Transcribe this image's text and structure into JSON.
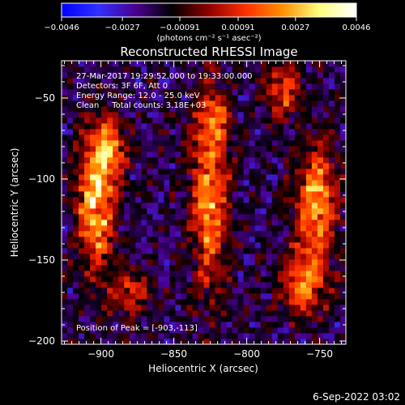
{
  "chart_data": {
    "type": "heatmap",
    "title": "Reconstructed RHESSI Image",
    "xlabel": "Heliocentric X (arcsec)",
    "ylabel": "Heliocentric Y (arcsec)",
    "xlim": [
      -927,
      -732
    ],
    "ylim": [
      -202,
      -27
    ],
    "x_ticks": [
      {
        "value": -900,
        "label": "−900"
      },
      {
        "value": -850,
        "label": "−850"
      },
      {
        "value": -800,
        "label": "−800"
      },
      {
        "value": -750,
        "label": "−750"
      }
    ],
    "y_ticks": [
      {
        "value": -50,
        "label": "−50"
      },
      {
        "value": -100,
        "label": "−100"
      },
      {
        "value": -150,
        "label": "−150"
      },
      {
        "value": -200,
        "label": "−200"
      }
    ],
    "colorbar": {
      "min": -0.0046,
      "max": 0.0046,
      "ticks": [
        {
          "value": -0.0046,
          "label": "−0.0046"
        },
        {
          "value": -0.0027,
          "label": "−0.0027"
        },
        {
          "value": -0.00091,
          "label": "−0.00091"
        },
        {
          "value": 0.00091,
          "label": "0.00091"
        },
        {
          "value": 0.0027,
          "label": "0.0027"
        },
        {
          "value": 0.0046,
          "label": "0.0046"
        }
      ],
      "label": "(photons cm⁻² s⁻¹ asec⁻²)",
      "stops": [
        "#0000ff",
        "#3030ff",
        "#4a0090",
        "#000000",
        "#900000",
        "#ff3000",
        "#ff9000",
        "#ffff80",
        "#ffffff"
      ]
    },
    "sources": [
      {
        "x": -903,
        "y": -113,
        "sx": 9,
        "sy": 28,
        "amp": 0.0046
      },
      {
        "x": -893,
        "y": -80,
        "sx": 8,
        "sy": 12,
        "amp": 0.0032
      },
      {
        "x": -880,
        "y": -170,
        "sx": 10,
        "sy": 10,
        "amp": 0.0024
      },
      {
        "x": -825,
        "y": -110,
        "sx": 9,
        "sy": 40,
        "amp": 0.004
      },
      {
        "x": -822,
        "y": -60,
        "sx": 7,
        "sy": 10,
        "amp": 0.002
      },
      {
        "x": -752,
        "y": -115,
        "sx": 10,
        "sy": 25,
        "amp": 0.0042
      },
      {
        "x": -762,
        "y": -165,
        "sx": 11,
        "sy": 14,
        "amp": 0.0034
      },
      {
        "x": -775,
        "y": -45,
        "sx": 9,
        "sy": 12,
        "amp": 0.0028
      }
    ]
  },
  "annotations": {
    "time_range": "27-Mar-2017 19:29:52.000 to 19:33:00.000",
    "detectors": "Detectors: 3F 6F, Att 0",
    "energy": "Energy Range: 12.0 - 25.0 keV",
    "clean": "Clean     Total counts: 3.18E+03",
    "peak": "Position of Peak = [-903,-113]"
  },
  "footer": {
    "timestamp": "6-Sep-2022 03:02"
  }
}
